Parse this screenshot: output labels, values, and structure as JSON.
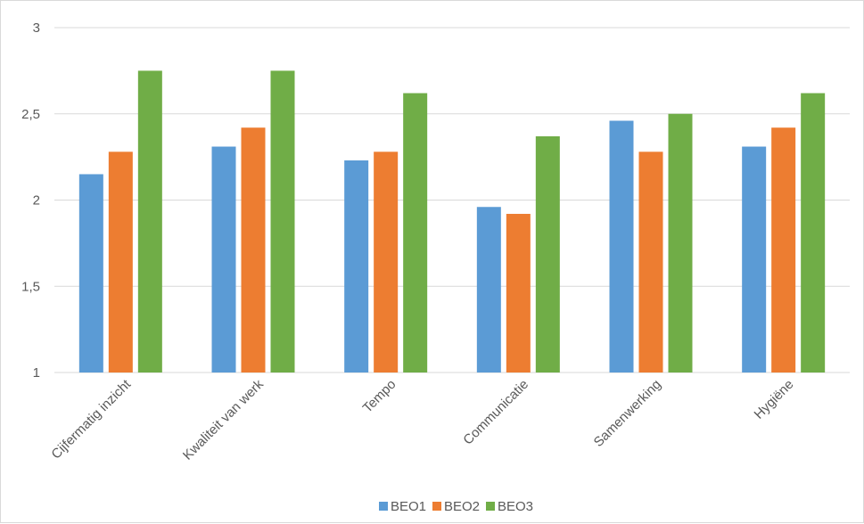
{
  "chart_data": {
    "type": "bar",
    "categories": [
      "Cijfermatig inzicht",
      "Kwaliteit van werk",
      "Tempo",
      "Communicatie",
      "Samenwerking",
      "Hygiëne"
    ],
    "series": [
      {
        "name": "BEO1",
        "color": "#5b9bd5",
        "values": [
          2.15,
          2.31,
          2.23,
          1.96,
          2.46,
          2.31
        ]
      },
      {
        "name": "BEO2",
        "color": "#ed7d31",
        "values": [
          2.28,
          2.42,
          2.28,
          1.92,
          2.28,
          2.42
        ]
      },
      {
        "name": "BEO3",
        "color": "#70ad47",
        "values": [
          2.75,
          2.75,
          2.62,
          2.37,
          2.5,
          2.62
        ]
      }
    ],
    "y_ticks": [
      "1",
      "1,5",
      "2",
      "2,5",
      "3"
    ],
    "ylim": [
      1,
      3
    ],
    "grid": true,
    "legend_position": "bottom"
  }
}
